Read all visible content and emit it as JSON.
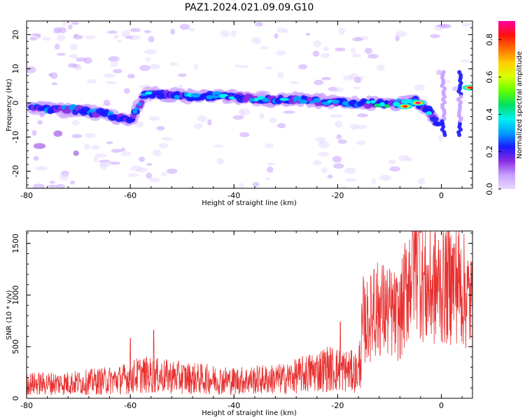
{
  "figure": {
    "title": "PAZ1.2024.021.09.09.G10"
  },
  "chart_data": [
    {
      "type": "heatmap",
      "name": "spectrogram",
      "xlabel": "Height of straight line (km)",
      "ylabel": "Frequency (Hz)",
      "xlim": [
        -80,
        6
      ],
      "ylim": [
        -25,
        24
      ],
      "xticks": [
        -80,
        -60,
        -40,
        -20,
        0
      ],
      "yticks": [
        -20,
        -10,
        0,
        10,
        20
      ],
      "colorbar": {
        "label": "Normalized spectral amplitude",
        "range": [
          0,
          0.9
        ],
        "ticks": [
          0.0,
          0.2,
          0.4,
          0.6,
          0.8
        ],
        "colormap": [
          "#e8d8ff",
          "#c8a0ff",
          "#8a2be2",
          "#1a1aff",
          "#00a0ff",
          "#00f0f0",
          "#00e060",
          "#60ff00",
          "#d8ff00",
          "#ffd000",
          "#ff7000",
          "#ff1010",
          "#ff00a0"
        ]
      },
      "ridge": [
        {
          "x": -78,
          "f": -1.5
        },
        {
          "x": -70,
          "f": -2
        },
        {
          "x": -64,
          "f": -3.5
        },
        {
          "x": -60,
          "f": -5.5
        },
        {
          "x": -57,
          "f": 3
        },
        {
          "x": -50,
          "f": 2
        },
        {
          "x": -42,
          "f": 2
        },
        {
          "x": -35,
          "f": 1
        },
        {
          "x": -28,
          "f": 1
        },
        {
          "x": -20,
          "f": 0
        },
        {
          "x": -15,
          "f": 0
        },
        {
          "x": -10,
          "f": -0.5
        },
        {
          "x": -5,
          "f": 0.5
        },
        {
          "x": -2,
          "f": -3
        },
        {
          "x": 0,
          "f": -8
        }
      ],
      "peaks": [
        {
          "x": -7,
          "f": -1,
          "value": 0.85
        },
        {
          "x": -4.5,
          "f": 0,
          "value": 0.9
        },
        {
          "x": 5.5,
          "f": 4.5,
          "value": 0.85
        }
      ]
    },
    {
      "type": "line",
      "name": "snr",
      "xlabel": "Height of straight line (km)",
      "ylabel": "SNR (10 * v/v)",
      "xlim": [
        -80,
        6
      ],
      "ylim": [
        0,
        1620
      ],
      "xticks": [
        -80,
        -60,
        -40,
        -20,
        0
      ],
      "yticks": [
        0,
        500,
        1000,
        1500
      ],
      "color": "#e83030",
      "envelope": [
        {
          "x": -80,
          "y": 140
        },
        {
          "x": -70,
          "y": 150
        },
        {
          "x": -62,
          "y": 180
        },
        {
          "x": -58,
          "y": 230
        },
        {
          "x": -50,
          "y": 200
        },
        {
          "x": -40,
          "y": 170
        },
        {
          "x": -30,
          "y": 190
        },
        {
          "x": -22,
          "y": 290
        },
        {
          "x": -16,
          "y": 250
        },
        {
          "x": -15,
          "y": 700
        },
        {
          "x": -12,
          "y": 880
        },
        {
          "x": -8,
          "y": 780
        },
        {
          "x": -5,
          "y": 1450
        },
        {
          "x": -3,
          "y": 1050
        },
        {
          "x": 0,
          "y": 1100
        },
        {
          "x": 3,
          "y": 1150
        },
        {
          "x": 6,
          "y": 900
        }
      ],
      "spikes": [
        {
          "x": -60,
          "y": 580
        },
        {
          "x": -55.5,
          "y": 660
        },
        {
          "x": -19.5,
          "y": 740
        },
        {
          "x": -15,
          "y": 1130
        },
        {
          "x": -13,
          "y": 1250
        },
        {
          "x": -5.5,
          "y": 1620
        },
        {
          "x": -4.5,
          "y": 1580
        },
        {
          "x": 2,
          "y": 1380
        }
      ]
    }
  ]
}
